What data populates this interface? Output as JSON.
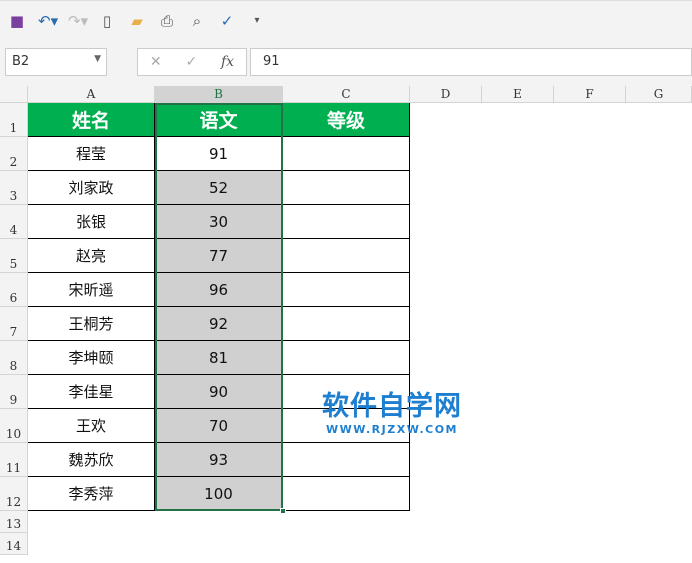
{
  "toolbar": {
    "icons": [
      "save-icon",
      "undo-icon",
      "redo-icon",
      "new-file-icon",
      "open-folder-icon",
      "print-icon",
      "print-preview-icon",
      "spellcheck-icon",
      "customize-icon"
    ]
  },
  "formula_bar": {
    "name_box": "B2",
    "formula": "91",
    "fx": "fx",
    "cancel": "✕",
    "confirm": "✓"
  },
  "columns": [
    "A",
    "B",
    "C",
    "D",
    "E",
    "F",
    "G"
  ],
  "rows": [
    "1",
    "2",
    "3",
    "4",
    "5",
    "6",
    "7",
    "8",
    "9",
    "10",
    "11",
    "12",
    "13",
    "14"
  ],
  "table": {
    "headers": [
      "姓名",
      "语文",
      "等级"
    ],
    "data": [
      [
        "程莹",
        "91"
      ],
      [
        "刘家政",
        "52"
      ],
      [
        "张银",
        "30"
      ],
      [
        "赵亮",
        "77"
      ],
      [
        "宋昕遥",
        "96"
      ],
      [
        "王桐芳",
        "92"
      ],
      [
        "李坤颐",
        "81"
      ],
      [
        "李佳星",
        "90"
      ],
      [
        "王欢",
        "70"
      ],
      [
        "魏苏欣",
        "93"
      ],
      [
        "李秀萍",
        "100"
      ]
    ]
  },
  "watermark": {
    "title": "软件自学网",
    "url": "WWW.RJZXW.COM"
  },
  "colors": {
    "header_fill": "#00b050",
    "selection": "#217346",
    "selected_fill": "#d0d0d0"
  }
}
